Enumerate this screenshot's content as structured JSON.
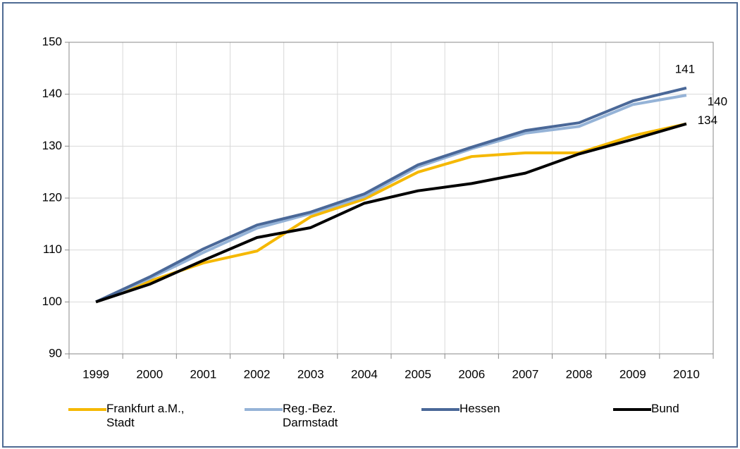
{
  "chart_data": {
    "type": "line",
    "categories": [
      "1999",
      "2000",
      "2001",
      "2002",
      "2003",
      "2004",
      "2005",
      "2006",
      "2007",
      "2008",
      "2009",
      "2010"
    ],
    "series": [
      {
        "name": "Frankfurt a.M., Stadt",
        "color": "#f5b800",
        "values": [
          100,
          104,
          107.5,
          109.8,
          116.4,
          119.8,
          125,
          128,
          128.7,
          128.7,
          132,
          134.3
        ]
      },
      {
        "name": "Reg.-Bez. Darmstadt",
        "color": "#95b3d7",
        "values": [
          100,
          104.5,
          109.5,
          114.2,
          117,
          120.3,
          126,
          129.5,
          132.5,
          133.8,
          138,
          139.8
        ],
        "end_label": "140"
      },
      {
        "name": "Hessen",
        "color": "#4a6898",
        "values": [
          100,
          104.8,
          110.2,
          114.8,
          117.3,
          120.8,
          126.4,
          129.8,
          133,
          134.5,
          138.7,
          141.2
        ],
        "end_label": "141"
      },
      {
        "name": "Bund",
        "color": "#000000",
        "values": [
          100,
          103.4,
          108,
          112.4,
          114.3,
          119,
          121.4,
          122.8,
          124.8,
          128.5,
          131.3,
          134.3
        ],
        "end_label": "134"
      }
    ],
    "ylim": [
      90,
      150
    ],
    "yticks": [
      90,
      100,
      110,
      120,
      130,
      140,
      150
    ],
    "grid": true,
    "legend": "bottom"
  }
}
